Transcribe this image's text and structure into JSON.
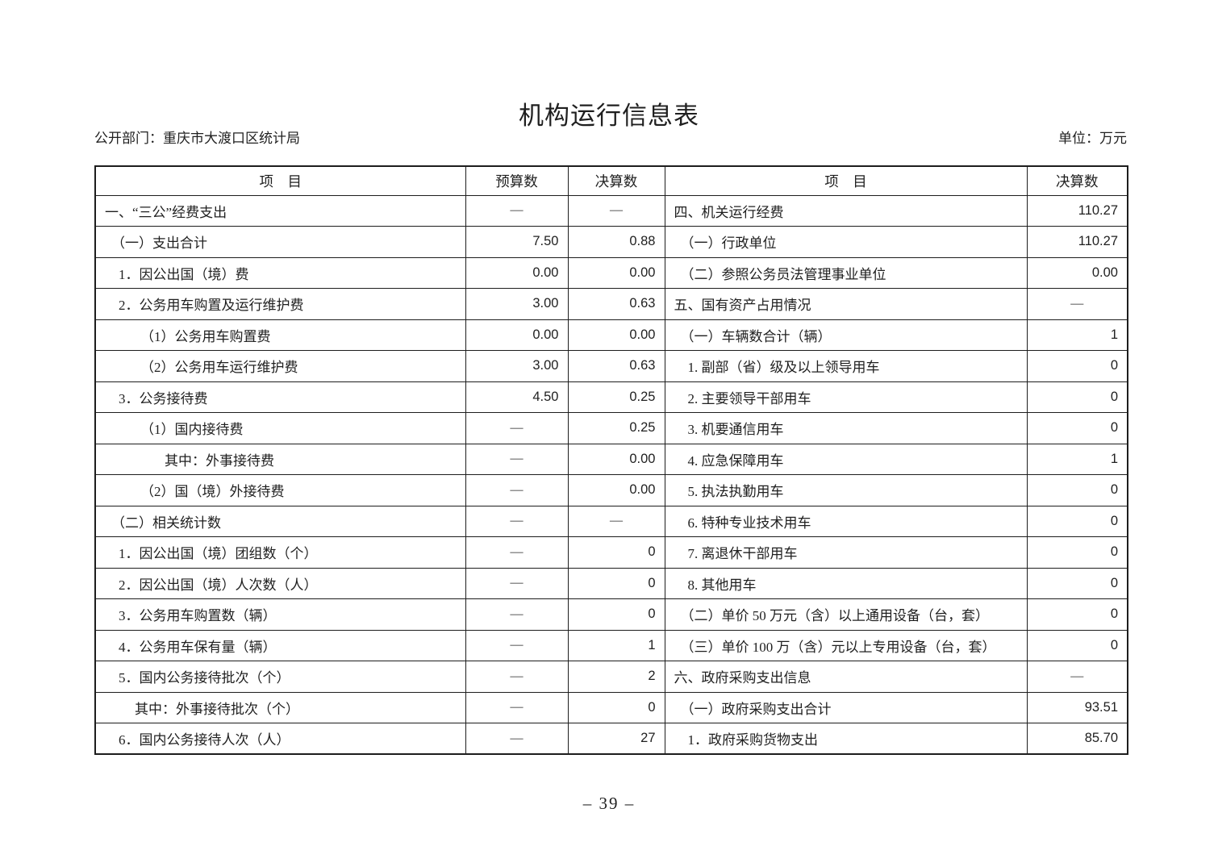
{
  "page": {
    "title": "机构运行信息表",
    "department": "公开部门：重庆市大渡口区统计局",
    "unit": "单位：万元",
    "page_number": "– 39 –"
  },
  "table": {
    "headers": {
      "item_left": "项　目",
      "budget": "预算数",
      "final_left": "决算数",
      "item_right": "项　目",
      "final_right": "决算数"
    },
    "rows": [
      {
        "left": {
          "label": "一、“三公”经费支出",
          "indent": 0,
          "budget": "—",
          "final": "—"
        },
        "right": {
          "label": "四、机关运行经费",
          "indent": 0,
          "final": "110.27"
        }
      },
      {
        "left": {
          "label": "（一）支出合计",
          "indent": 1,
          "budget": "7.50",
          "final": "0.88"
        },
        "right": {
          "label": "（一）行政单位",
          "indent": 1,
          "final": "110.27"
        }
      },
      {
        "left": {
          "label": "1．因公出国（境）费",
          "indent": 2,
          "budget": "0.00",
          "final": "0.00"
        },
        "right": {
          "label": "（二）参照公务员法管理事业单位",
          "indent": 1,
          "final": "0.00"
        }
      },
      {
        "left": {
          "label": "2．公务用车购置及运行维护费",
          "indent": 2,
          "budget": "3.00",
          "final": "0.63"
        },
        "right": {
          "label": "五、国有资产占用情况",
          "indent": 0,
          "final": "—"
        }
      },
      {
        "left": {
          "label": "（1）公务用车购置费",
          "indent": 3,
          "budget": "0.00",
          "final": "0.00"
        },
        "right": {
          "label": "（一）车辆数合计（辆）",
          "indent": 1,
          "final": "1"
        }
      },
      {
        "left": {
          "label": "（2）公务用车运行维护费",
          "indent": 3,
          "budget": "3.00",
          "final": "0.63"
        },
        "right": {
          "label": "1. 副部（省）级及以上领导用车",
          "indent": 2,
          "final": "0"
        }
      },
      {
        "left": {
          "label": "3．公务接待费",
          "indent": 2,
          "budget": "4.50",
          "final": "0.25"
        },
        "right": {
          "label": "2. 主要领导干部用车",
          "indent": 2,
          "final": "0"
        }
      },
      {
        "left": {
          "label": "（1）国内接待费",
          "indent": 3,
          "budget": "—",
          "final": "0.25"
        },
        "right": {
          "label": "3. 机要通信用车",
          "indent": 2,
          "final": "0"
        }
      },
      {
        "left": {
          "label": "其中：外事接待费",
          "indent": 5,
          "budget": "—",
          "final": "0.00"
        },
        "right": {
          "label": "4. 应急保障用车",
          "indent": 2,
          "final": "1"
        }
      },
      {
        "left": {
          "label": "（2）国（境）外接待费",
          "indent": 3,
          "budget": "—",
          "final": "0.00"
        },
        "right": {
          "label": "5. 执法执勤用车",
          "indent": 2,
          "final": "0"
        }
      },
      {
        "left": {
          "label": "（二）相关统计数",
          "indent": 1,
          "budget": "—",
          "final": "—"
        },
        "right": {
          "label": "6. 特种专业技术用车",
          "indent": 2,
          "final": "0"
        }
      },
      {
        "left": {
          "label": "1．因公出国（境）团组数（个）",
          "indent": 2,
          "budget": "—",
          "final": "0"
        },
        "right": {
          "label": "7. 离退休干部用车",
          "indent": 2,
          "final": "0"
        }
      },
      {
        "left": {
          "label": "2．因公出国（境）人次数（人）",
          "indent": 2,
          "budget": "—",
          "final": "0"
        },
        "right": {
          "label": "8. 其他用车",
          "indent": 2,
          "final": "0"
        }
      },
      {
        "left": {
          "label": "3．公务用车购置数（辆）",
          "indent": 2,
          "budget": "—",
          "final": "0"
        },
        "right": {
          "label": "（二）单价 50 万元（含）以上通用设备（台，套）",
          "indent": 1,
          "final": "0"
        }
      },
      {
        "left": {
          "label": "4．公务用车保有量（辆）",
          "indent": 2,
          "budget": "—",
          "final": "1"
        },
        "right": {
          "label": "（三）单价 100 万（含）元以上专用设备（台，套）",
          "indent": 1,
          "final": "0"
        }
      },
      {
        "left": {
          "label": "5．国内公务接待批次（个）",
          "indent": 2,
          "budget": "—",
          "final": "2"
        },
        "right": {
          "label": "六、政府采购支出信息",
          "indent": 0,
          "final": "—"
        }
      },
      {
        "left": {
          "label": "其中：外事接待批次（个）",
          "indent": 4,
          "budget": "—",
          "final": "0"
        },
        "right": {
          "label": "（一）政府采购支出合计",
          "indent": 1,
          "final": "93.51"
        }
      },
      {
        "left": {
          "label": "6．国内公务接待人次（人）",
          "indent": 2,
          "budget": "—",
          "final": "27"
        },
        "right": {
          "label": "1．政府采购货物支出",
          "indent": 2,
          "final": "85.70"
        }
      }
    ]
  }
}
